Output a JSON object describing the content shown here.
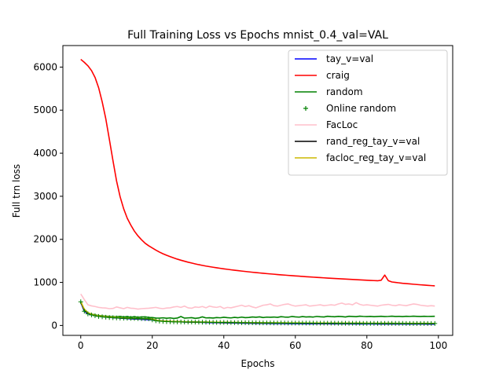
{
  "chart_data": {
    "type": "line",
    "title": "Full Training Loss vs Epochs mnist_0.4_val=VAL",
    "xlabel": "Epochs",
    "ylabel": "Full trn loss",
    "xlim": [
      -5,
      104
    ],
    "ylim": [
      -230,
      6500
    ],
    "xticks": [
      0,
      20,
      40,
      60,
      80,
      100
    ],
    "yticks": [
      0,
      1000,
      2000,
      3000,
      4000,
      5000,
      6000
    ],
    "grid": false,
    "legend_position": "top-right",
    "x": [
      0,
      1,
      2,
      3,
      4,
      5,
      6,
      7,
      8,
      9,
      10,
      11,
      12,
      13,
      14,
      15,
      16,
      17,
      18,
      19,
      20,
      21,
      22,
      23,
      24,
      25,
      26,
      27,
      28,
      29,
      30,
      31,
      32,
      33,
      34,
      35,
      36,
      37,
      38,
      39,
      40,
      41,
      42,
      43,
      44,
      45,
      46,
      47,
      48,
      49,
      50,
      51,
      52,
      53,
      54,
      55,
      56,
      57,
      58,
      59,
      60,
      61,
      62,
      63,
      64,
      65,
      66,
      67,
      68,
      69,
      70,
      71,
      72,
      73,
      74,
      75,
      76,
      77,
      78,
      79,
      80,
      81,
      82,
      83,
      84,
      85,
      86,
      87,
      88,
      89,
      90,
      91,
      92,
      93,
      94,
      95,
      96,
      97,
      98,
      99
    ],
    "series": [
      {
        "name": "tay_v=val",
        "color": "#0000ff",
        "style": "line",
        "values": [
          540,
          330,
          275,
          250,
          230,
          215,
          205,
          195,
          188,
          182,
          176,
          170,
          165,
          160,
          155,
          150,
          146,
          142,
          138,
          134,
          130,
          120,
          112,
          106,
          100,
          96,
          92,
          88,
          85,
          82,
          80,
          78,
          76,
          74,
          72,
          70,
          68,
          66,
          64,
          62,
          60,
          58,
          57,
          56,
          55,
          54,
          53,
          52,
          51,
          50,
          49,
          48,
          47,
          46,
          45,
          45,
          44,
          44,
          43,
          43,
          42,
          42,
          41,
          41,
          40,
          40,
          40,
          39,
          39,
          39,
          38,
          38,
          38,
          37,
          37,
          37,
          36,
          36,
          36,
          35,
          35,
          35,
          35,
          34,
          34,
          34,
          34,
          33,
          33,
          33,
          33,
          33,
          32,
          32,
          32,
          32,
          32,
          31,
          31,
          31
        ]
      },
      {
        "name": "craig",
        "color": "#ff0000",
        "style": "line",
        "values": [
          6180,
          6110,
          6030,
          5920,
          5760,
          5520,
          5190,
          4800,
          4320,
          3830,
          3360,
          2990,
          2710,
          2490,
          2330,
          2190,
          2080,
          1990,
          1910,
          1850,
          1800,
          1750,
          1705,
          1665,
          1630,
          1598,
          1568,
          1540,
          1515,
          1492,
          1470,
          1450,
          1430,
          1412,
          1396,
          1380,
          1366,
          1352,
          1339,
          1327,
          1315,
          1304,
          1293,
          1283,
          1273,
          1263,
          1254,
          1245,
          1236,
          1228,
          1220,
          1212,
          1204,
          1197,
          1190,
          1183,
          1176,
          1170,
          1163,
          1157,
          1151,
          1145,
          1139,
          1133,
          1128,
          1122,
          1117,
          1112,
          1106,
          1101,
          1096,
          1091,
          1086,
          1082,
          1077,
          1072,
          1068,
          1063,
          1059,
          1054,
          1050,
          1046,
          1042,
          1038,
          1050,
          1170,
          1040,
          1010,
          1000,
          990,
          980,
          972,
          965,
          958,
          951,
          944,
          938,
          932,
          926,
          920
        ]
      },
      {
        "name": "random",
        "color": "#008000",
        "style": "line",
        "values": [
          560,
          340,
          290,
          265,
          245,
          232,
          222,
          215,
          210,
          205,
          200,
          212,
          196,
          206,
          190,
          204,
          188,
          198,
          200,
          186,
          184,
          172,
          170,
          178,
          168,
          176,
          164,
          172,
          208,
          170,
          176,
          182,
          166,
          174,
          200,
          176,
          180,
          172,
          184,
          178,
          190,
          182,
          176,
          188,
          180,
          194,
          182,
          186,
          198,
          190,
          200,
          184,
          194,
          190,
          196,
          188,
          204,
          196,
          192,
          208,
          200,
          194,
          206,
          198,
          202,
          196,
          210,
          202,
          198,
          214,
          206,
          202,
          212,
          206,
          198,
          214,
          208,
          204,
          216,
          210,
          206,
          212,
          204,
          208,
          214,
          206,
          210,
          216,
          208,
          212,
          206,
          214,
          210,
          216,
          212,
          208,
          214,
          210,
          212,
          214
        ]
      },
      {
        "name": "Online random",
        "color": "#008000",
        "style": "markers",
        "values": [
          550,
          330,
          270,
          245,
          225,
          210,
          200,
          192,
          185,
          180,
          176,
          172,
          170,
          168,
          166,
          164,
          162,
          160,
          158,
          156,
          130,
          110,
          100,
          94,
          90,
          87,
          85,
          83,
          82,
          81,
          80,
          79,
          78,
          77,
          76,
          75,
          74,
          73,
          72,
          71,
          70,
          69,
          68,
          67,
          66,
          65,
          64,
          63,
          62,
          61,
          60,
          60,
          59,
          59,
          58,
          58,
          57,
          57,
          56,
          56,
          55,
          55,
          55,
          54,
          54,
          54,
          53,
          53,
          53,
          52,
          52,
          52,
          51,
          51,
          51,
          50,
          50,
          50,
          50,
          49,
          49,
          49,
          49,
          48,
          48,
          48,
          48,
          47,
          47,
          47,
          47,
          46,
          46,
          46,
          46,
          46,
          45,
          45,
          45,
          45
        ]
      },
      {
        "name": "FacLoc",
        "color": "#ffc0cb",
        "style": "line",
        "values": [
          730,
          600,
          480,
          455,
          440,
          420,
          410,
          405,
          390,
          395,
          430,
          410,
          390,
          420,
          400,
          395,
          380,
          390,
          395,
          400,
          410,
          420,
          400,
          390,
          405,
          410,
          430,
          440,
          420,
          450,
          410,
          400,
          430,
          420,
          440,
          410,
          450,
          430,
          420,
          440,
          395,
          420,
          410,
          430,
          450,
          470,
          440,
          460,
          430,
          410,
          440,
          470,
          480,
          500,
          460,
          450,
          470,
          490,
          500,
          470,
          450,
          460,
          470,
          480,
          450,
          460,
          470,
          480,
          460,
          470,
          480,
          470,
          500,
          520,
          490,
          500,
          480,
          530,
          490,
          470,
          480,
          470,
          460,
          450,
          470,
          480,
          490,
          470,
          460,
          480,
          470,
          460,
          480,
          500,
          490,
          470,
          460,
          450,
          460,
          450
        ]
      },
      {
        "name": "rand_reg_tay_v=val",
        "color": "#000000",
        "style": "line",
        "values": [
          540,
          360,
          290,
          255,
          232,
          218,
          206,
          198,
          190,
          184,
          178,
          174,
          170,
          166,
          162,
          160,
          158,
          156,
          154,
          152,
          150,
          120,
          110,
          102,
          96,
          92,
          90,
          88,
          86,
          84,
          82,
          80,
          79,
          78,
          77,
          76,
          75,
          74,
          73,
          72,
          70,
          69,
          68,
          67,
          66,
          65,
          64,
          63,
          62,
          61,
          60,
          59,
          59,
          58,
          58,
          57,
          57,
          56,
          56,
          55,
          55,
          54,
          54,
          53,
          53,
          53,
          52,
          52,
          52,
          51,
          51,
          51,
          50,
          50,
          50,
          49,
          49,
          49,
          49,
          48,
          48,
          48,
          48,
          47,
          47,
          47,
          47,
          46,
          46,
          46,
          46,
          46,
          45,
          45,
          45,
          45,
          45,
          44,
          44,
          44
        ]
      },
      {
        "name": "facloc_reg_tay_v=val",
        "color": "#ccb800",
        "style": "line",
        "values": [
          555,
          380,
          300,
          262,
          240,
          226,
          214,
          205,
          196,
          190,
          184,
          180,
          176,
          172,
          168,
          165,
          162,
          160,
          158,
          155,
          150,
          125,
          112,
          104,
          99,
          95,
          92,
          90,
          88,
          86,
          84,
          83,
          82,
          80,
          79,
          78,
          77,
          76,
          75,
          74,
          73,
          72,
          71,
          70,
          69,
          68,
          67,
          66,
          65,
          64,
          63,
          63,
          62,
          62,
          61,
          61,
          60,
          60,
          59,
          59,
          58,
          58,
          58,
          57,
          57,
          57,
          56,
          56,
          56,
          55,
          55,
          55,
          54,
          54,
          54,
          54,
          53,
          53,
          53,
          53,
          52,
          52,
          52,
          52,
          51,
          51,
          51,
          51,
          50,
          50,
          50,
          50,
          50,
          49,
          49,
          49,
          49,
          49,
          48,
          48
        ]
      }
    ]
  }
}
